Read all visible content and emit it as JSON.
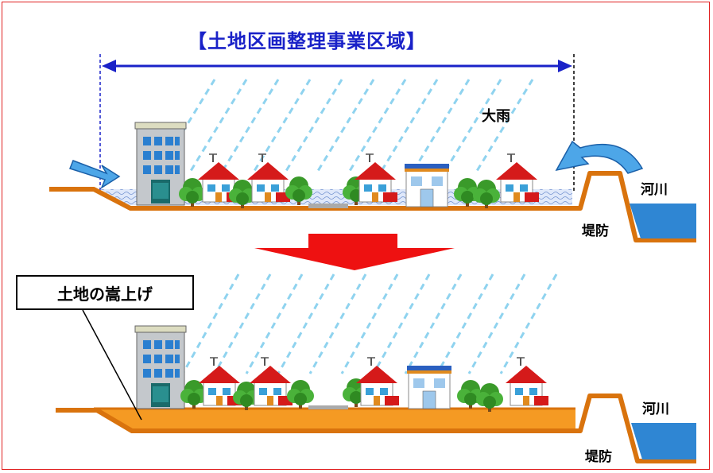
{
  "title": "【土地区画整理事業区域】",
  "labels": {
    "heavy_rain": "大雨",
    "river_top": "河川",
    "levee_top": "堤防",
    "river_bottom": "河川",
    "levee_bottom": "堤防",
    "land_raising": "土地の嵩上げ"
  },
  "colors": {
    "title": "#1a22c8",
    "frame": "#e02020",
    "ground_stroke": "#d9730d",
    "raised_fill": "#f59a23",
    "flood_water": "#c9d8f5",
    "river_water": "#2f86d3",
    "rain": "#8fd3ef",
    "transition_arrow": "#ee1111",
    "inflow_arrow": "#4da6e8"
  },
  "icons": [
    "building-icon",
    "house-icon",
    "tree-icon",
    "shop-icon",
    "rain-icon",
    "inflow-arrow-icon",
    "down-arrow-icon"
  ]
}
